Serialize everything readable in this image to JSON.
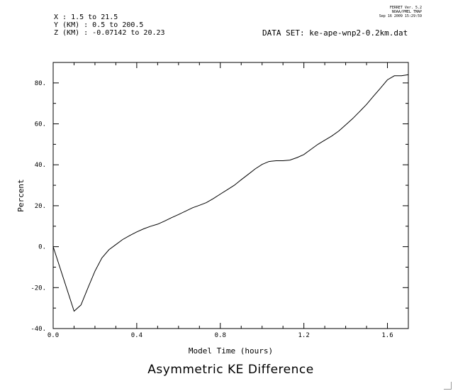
{
  "header": {
    "x_range": "X : 1.5 to 21.5",
    "y_range": "Y (KM) : 0.5 to 200.5",
    "z_range": "Z (KM) : -0.07142 to 20.23",
    "dataset": "DATA SET: ke-ape-wnp2-0.2km.dat",
    "meta_line1": "FERRET Ver. 5.2",
    "meta_line2": "NOAA/PMEL TMAP",
    "meta_line3": "Sep 16 2009 15:29:59"
  },
  "chart_data": {
    "type": "line",
    "title": "Asymmetric KE Difference",
    "xlabel": "Model Time (hours)",
    "ylabel": "Percent",
    "xlim": [
      0.0,
      1.7
    ],
    "ylim": [
      -40,
      90
    ],
    "x_ticks": [
      0.0,
      0.4,
      0.8,
      1.2,
      1.6
    ],
    "x_tick_labels": [
      "0.0",
      "0.4",
      "0.8",
      "1.2",
      "1.6"
    ],
    "y_ticks": [
      -40,
      -20,
      0,
      20,
      40,
      60,
      80
    ],
    "y_tick_labels": [
      "-40.",
      "-20.",
      "0.",
      "20.",
      "40.",
      "60.",
      "80."
    ],
    "grid": false,
    "series": [
      {
        "x": [
          0.0,
          0.1,
          0.133,
          0.167,
          0.2,
          0.233,
          0.267,
          0.3,
          0.333,
          0.367,
          0.4,
          0.433,
          0.467,
          0.5,
          0.533,
          0.567,
          0.6,
          0.633,
          0.667,
          0.7,
          0.733,
          0.767,
          0.8,
          0.833,
          0.867,
          0.9,
          0.933,
          0.967,
          1.0,
          1.033,
          1.067,
          1.1,
          1.133,
          1.167,
          1.2,
          1.233,
          1.267,
          1.3,
          1.333,
          1.367,
          1.4,
          1.433,
          1.467,
          1.5,
          1.533,
          1.567,
          1.6,
          1.633,
          1.667,
          1.7
        ],
        "values": [
          0,
          -31.5,
          -28.5,
          -20,
          -12,
          -5.5,
          -1.5,
          1,
          3.5,
          5.5,
          7.2,
          8.7,
          10,
          11,
          12.5,
          14.2,
          15.7,
          17.3,
          19,
          20.2,
          21.5,
          23.5,
          25.7,
          27.8,
          30,
          32.7,
          35.3,
          38,
          40.2,
          41.6,
          42,
          42,
          42.3,
          43.5,
          45,
          47.5,
          50,
          52,
          54,
          56.5,
          59.5,
          62.5,
          66,
          69.5,
          73.5,
          77.5,
          81.5,
          83.5,
          83.5,
          84
        ]
      }
    ]
  }
}
